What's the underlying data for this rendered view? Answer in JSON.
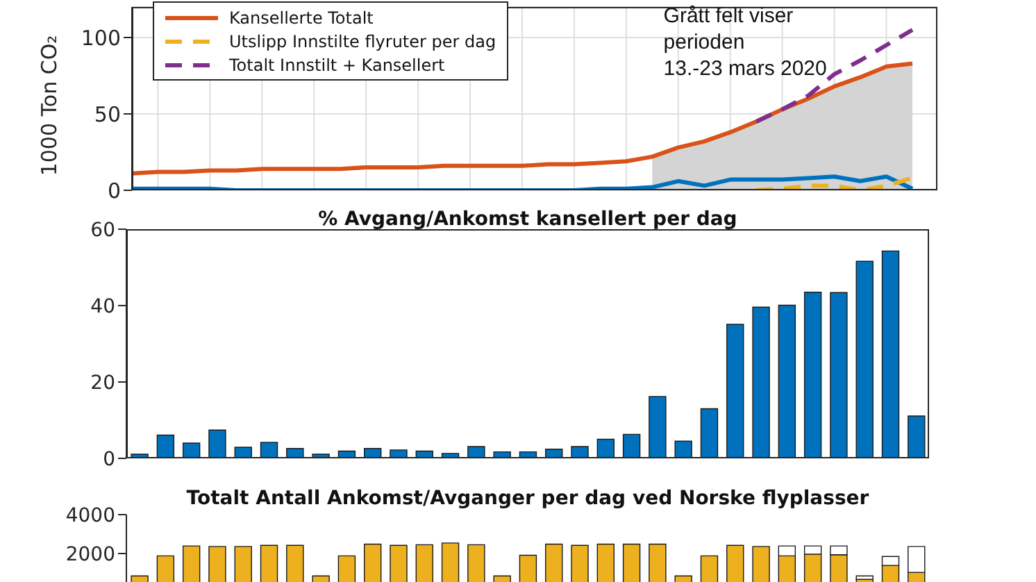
{
  "chart_data": [
    {
      "type": "line",
      "ylabel": "1000 Ton CO₂",
      "categories": [
        null,
        null,
        null,
        null,
        null,
        null,
        null,
        null,
        null,
        null,
        null,
        null,
        null,
        null,
        null,
        null,
        null,
        null,
        null,
        null,
        null,
        null,
        null,
        null,
        null,
        null,
        null,
        null,
        null,
        null,
        null
      ],
      "ylim": [
        0,
        120
      ],
      "yticks": [
        0,
        50,
        100
      ],
      "grid": true,
      "legend": "top left",
      "tick_labels": "y",
      "annotations": [
        "Grått felt viser",
        "perioden",
        "13.-23 mars 2020"
      ],
      "series": [
        {
          "type": "area",
          "color": "#d4d4d4",
          "values": [
            null,
            null,
            null,
            null,
            null,
            null,
            null,
            null,
            null,
            null,
            null,
            null,
            null,
            null,
            null,
            null,
            null,
            null,
            null,
            null,
            22,
            28,
            32,
            38,
            45,
            53,
            60,
            68,
            74,
            81,
            83
          ]
        },
        {
          "color": "#0072bd",
          "values": [
            1,
            1,
            1,
            1,
            0,
            0,
            0,
            0,
            0,
            0,
            0,
            0,
            0,
            0,
            0,
            0,
            0,
            0,
            1,
            1,
            2,
            6,
            3,
            7,
            7,
            7,
            8,
            9,
            6,
            9,
            1
          ]
        },
        {
          "name": "Kansellerte Totalt",
          "color": "#d95319",
          "values": [
            11,
            12,
            12,
            13,
            13,
            14,
            14,
            14,
            14,
            15,
            15,
            15,
            16,
            16,
            16,
            16,
            17,
            17,
            18,
            19,
            22,
            28,
            32,
            38,
            45,
            53,
            60,
            68,
            74,
            81,
            83
          ]
        },
        {
          "name": "Utslipp Innstilte flyruter per dag",
          "color": "#edb120",
          "line_style": "dashed",
          "values": [
            null,
            null,
            null,
            null,
            null,
            null,
            null,
            null,
            null,
            null,
            null,
            null,
            null,
            null,
            null,
            null,
            null,
            null,
            null,
            null,
            null,
            null,
            null,
            null,
            0,
            1,
            3,
            3,
            0,
            3,
            8
          ]
        },
        {
          "name": "Totalt Innstilt + Kansellert",
          "color": "#7e2f8e",
          "line_style": "dashed",
          "values": [
            null,
            null,
            null,
            null,
            null,
            null,
            null,
            null,
            null,
            null,
            null,
            null,
            null,
            null,
            null,
            null,
            null,
            null,
            null,
            null,
            null,
            null,
            null,
            null,
            45,
            53,
            62,
            76,
            85,
            95,
            105
          ]
        }
      ]
    },
    {
      "type": "bar",
      "title": "% Avgang/Ankomst kansellert per dag",
      "categories": [
        null,
        null,
        null,
        null,
        null,
        null,
        null,
        null,
        null,
        null,
        null,
        null,
        null,
        null,
        null,
        null,
        null,
        null,
        null,
        null,
        null,
        null,
        null,
        null,
        null,
        null,
        null,
        null,
        null,
        null,
        null
      ],
      "ylim": [
        0,
        60
      ],
      "yticks": [
        0,
        20,
        40,
        60
      ],
      "tick_labels": "y",
      "color": "#0072bd",
      "values": [
        1.1,
        6.1,
        4,
        7.4,
        2.9,
        4.2,
        2.6,
        1.1,
        1.9,
        2.6,
        2.2,
        1.9,
        1.3,
        3.1,
        1.7,
        1.7,
        2.4,
        3.1,
        5,
        6.3,
        16.2,
        4.5,
        13,
        35.1,
        39.6,
        40.1,
        43.5,
        43.4,
        51.6,
        54.3,
        11.1
      ]
    },
    {
      "type": "bar",
      "stacked": true,
      "title": "Totalt Antall Ankomst/Avganger per dag ved Norske flyplasser",
      "categories": [
        null,
        null,
        null,
        null,
        null,
        null,
        null,
        null,
        null,
        null,
        null,
        null,
        null,
        null,
        null,
        null,
        null,
        null,
        null,
        null,
        null,
        null,
        null,
        null,
        null,
        null,
        null,
        null,
        null,
        null,
        null
      ],
      "ylim": [
        0,
        4000
      ],
      "yticks": [
        2000,
        4000
      ],
      "tick_labels": "y",
      "series": [
        {
          "color": "#edb120",
          "values": [
            850,
            1880,
            2390,
            2360,
            2360,
            2420,
            2420,
            850,
            1880,
            2480,
            2420,
            2450,
            2540,
            2450,
            850,
            1910,
            2480,
            2420,
            2480,
            2480,
            2480,
            850,
            1880,
            2420,
            2360,
            1880,
            1970,
            1940,
            670,
            1390,
            1030
          ]
        },
        {
          "color": "#ffffff",
          "values": [
            0,
            0,
            0,
            0,
            0,
            0,
            0,
            0,
            0,
            0,
            0,
            0,
            0,
            0,
            0,
            0,
            0,
            0,
            0,
            0,
            0,
            0,
            0,
            0,
            0,
            510,
            420,
            450,
            180,
            460,
            1330
          ]
        }
      ]
    }
  ]
}
